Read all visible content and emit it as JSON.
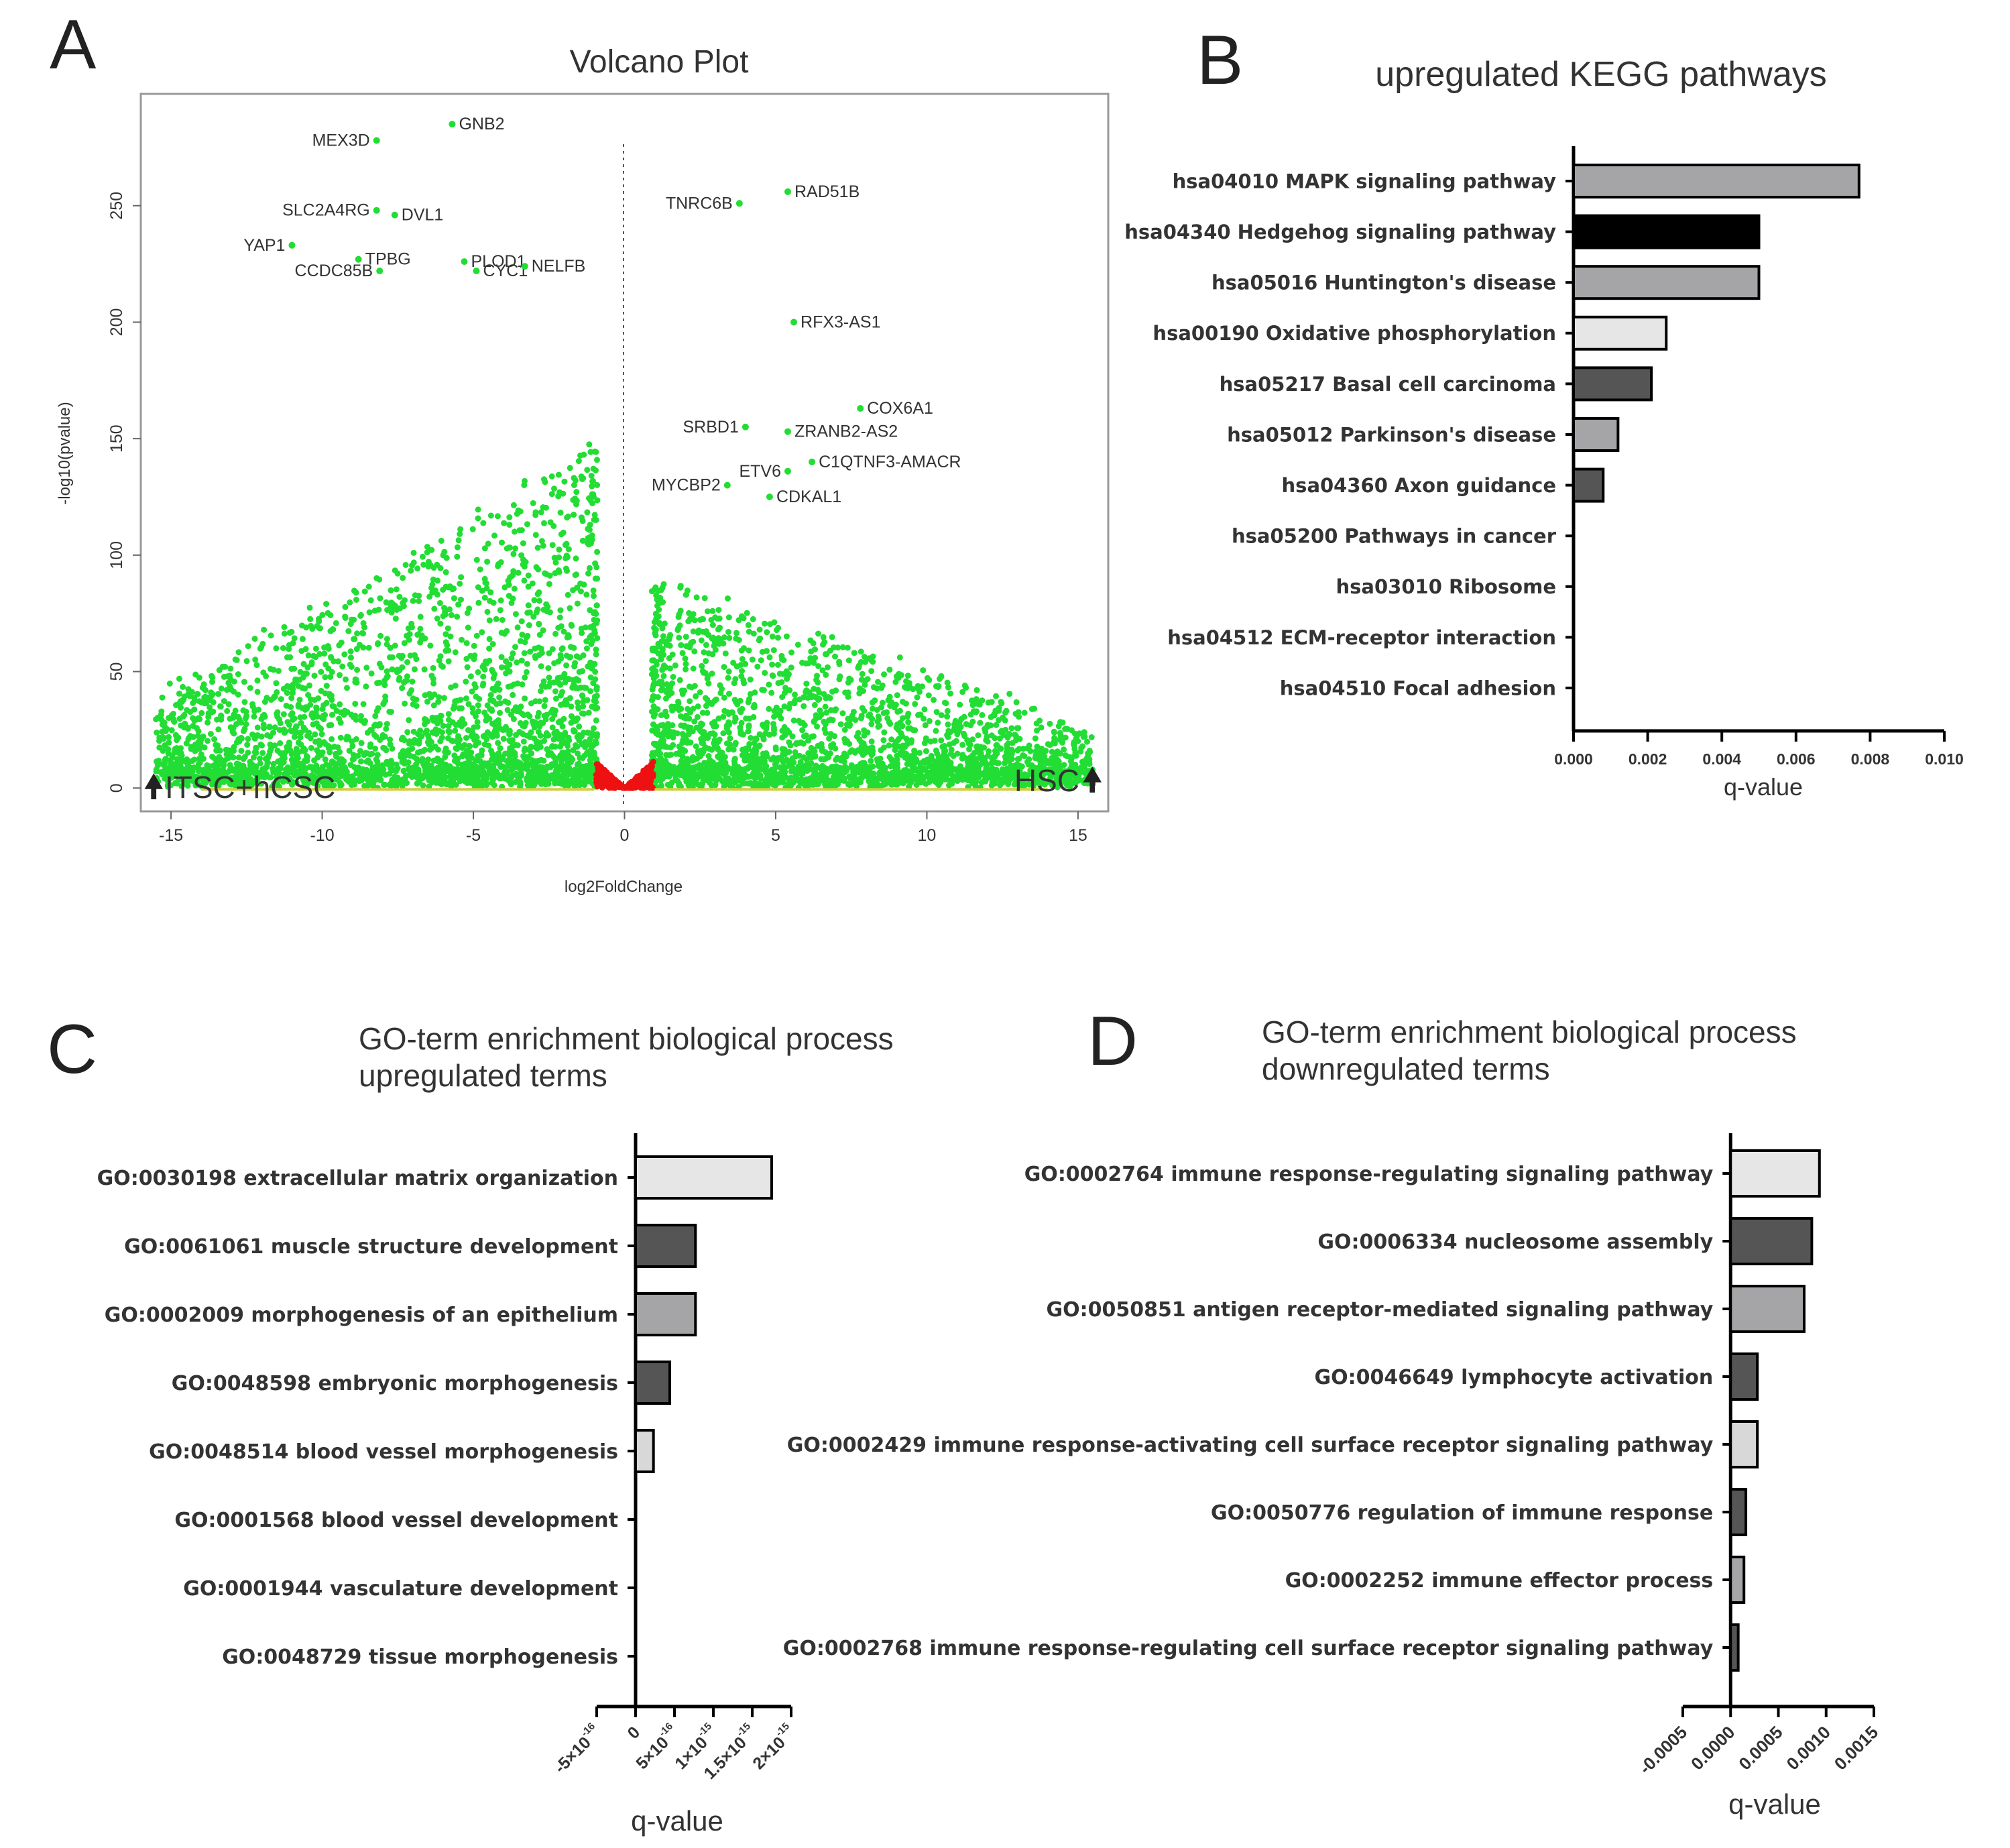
{
  "chart_data": [
    {
      "panel": "A",
      "type": "scatter",
      "title": "Volcano Plot",
      "xlabel": "log2FoldChange",
      "ylabel": "-log10(pvalue)",
      "xlim": [
        -16,
        16
      ],
      "ylim": [
        -10,
        298
      ],
      "xticks": [
        -15,
        -10,
        -5,
        0,
        5,
        10,
        15
      ],
      "yticks": [
        0,
        50,
        100,
        150,
        200,
        250
      ],
      "corner_labels": {
        "left": "ITSC+hCSC",
        "right": "HSC"
      },
      "colors": {
        "significant": "#22dd33",
        "not_significant": "#ee1111",
        "low": "#cfcf40"
      },
      "labeled_genes": [
        {
          "name": "GNB2",
          "x": -5.7,
          "y": 285
        },
        {
          "name": "MEX3D",
          "x": -8.2,
          "y": 278
        },
        {
          "name": "SLC2A4RG",
          "x": -8.2,
          "y": 248
        },
        {
          "name": "DVL1",
          "x": -7.6,
          "y": 246
        },
        {
          "name": "YAP1",
          "x": -11,
          "y": 233
        },
        {
          "name": "TPBG",
          "x": -8.8,
          "y": 227
        },
        {
          "name": "CCDC85B",
          "x": -8.1,
          "y": 222
        },
        {
          "name": "CYC1",
          "x": -4.9,
          "y": 222
        },
        {
          "name": "PLOD1",
          "x": -5.3,
          "y": 226
        },
        {
          "name": "NELFB",
          "x": -3.3,
          "y": 224
        },
        {
          "name": "TNRC6B",
          "x": 3.8,
          "y": 251
        },
        {
          "name": "RAD51B",
          "x": 5.4,
          "y": 256
        },
        {
          "name": "RFX3-AS1",
          "x": 5.6,
          "y": 200
        },
        {
          "name": "COX6A1",
          "x": 7.8,
          "y": 163
        },
        {
          "name": "SRBD1",
          "x": 4.0,
          "y": 155
        },
        {
          "name": "ZRANB2-AS2",
          "x": 5.4,
          "y": 153
        },
        {
          "name": "C1QTNF3-AMACR",
          "x": 6.2,
          "y": 140
        },
        {
          "name": "ETV6",
          "x": 5.4,
          "y": 136
        },
        {
          "name": "MYCBP2",
          "x": 3.4,
          "y": 130
        },
        {
          "name": "CDKAL1",
          "x": 4.8,
          "y": 125
        }
      ]
    },
    {
      "panel": "B",
      "type": "bar",
      "orientation": "horizontal",
      "title": "upregulated KEGG pathways",
      "xlabel": "q-value",
      "xlim": [
        0,
        0.01
      ],
      "xticks": [
        "0.000",
        "0.002",
        "0.004",
        "0.006",
        "0.008",
        "0.010"
      ],
      "categories": [
        "hsa04010 MAPK signaling pathway",
        "hsa04340 Hedgehog signaling pathway",
        "hsa05016 Huntington's disease",
        "hsa00190 Oxidative phosphorylation",
        "hsa05217 Basal cell carcinoma",
        "hsa05012 Parkinson's disease",
        "hsa04360 Axon guidance",
        "hsa05200 Pathways in cancer",
        "hsa03010 Ribosome",
        "hsa04512 ECM-receptor interaction",
        "hsa04510 Focal adhesion"
      ],
      "values": [
        0.0077,
        0.005,
        0.005,
        0.0025,
        0.0021,
        0.0012,
        0.0008,
        0,
        0,
        0,
        0
      ],
      "fills": [
        "#a5a5a8",
        "#000000",
        "#a5a5a8",
        "#e6e6e6",
        "#555555",
        "#a5a5a8",
        "#555555",
        "#ffffff",
        "#ffffff",
        "#ffffff",
        "#ffffff"
      ]
    },
    {
      "panel": "C",
      "type": "bar",
      "orientation": "horizontal",
      "title": [
        "GO-term enrichment biological process",
        "upregulated terms"
      ],
      "xlabel": "q-value",
      "xlim": [
        -5e-16,
        2e-15
      ],
      "xticks": [
        {
          "v": -5e-16,
          "base": "-5×10",
          "exp": "-16"
        },
        {
          "v": 0,
          "base": "0",
          "exp": ""
        },
        {
          "v": 5e-16,
          "base": "5×10",
          "exp": "-16"
        },
        {
          "v": 1e-15,
          "base": "1×10",
          "exp": "-15"
        },
        {
          "v": 1.5e-15,
          "base": "1.5×10",
          "exp": "-15"
        },
        {
          "v": 2e-15,
          "base": "2×10",
          "exp": "-15"
        }
      ],
      "categories": [
        "GO:0030198 extracellular matrix organization",
        "GO:0061061 muscle structure development",
        "GO:0002009 morphogenesis of an epithelium",
        "GO:0048598 embryonic morphogenesis",
        "GO:0048514 blood vessel morphogenesis",
        "GO:0001568 blood vessel development",
        "GO:0001944 vasculature development",
        "GO:0048729 tissue morphogenesis"
      ],
      "values": [
        1.75e-15,
        7.7e-16,
        7.7e-16,
        4.4e-16,
        2.3e-16,
        0,
        0,
        0
      ],
      "fills": [
        "#e6e6e6",
        "#555555",
        "#a5a5a8",
        "#555555",
        "#d8d8d8",
        "#ffffff",
        "#ffffff",
        "#ffffff"
      ]
    },
    {
      "panel": "D",
      "type": "bar",
      "orientation": "horizontal",
      "title": [
        "GO-term enrichment biological process",
        "downregulated terms"
      ],
      "xlabel": "q-value",
      "xlim": [
        -0.0005,
        0.0015
      ],
      "xticks": [
        "-0.0005",
        "0.0000",
        "0.0005",
        "0.0010",
        "0.0015"
      ],
      "categories": [
        "GO:0002764 immune response-regulating signaling pathway",
        "GO:0006334 nucleosome assembly",
        "GO:0050851 antigen receptor-mediated signaling pathway",
        "GO:0046649 lymphocyte activation",
        "GO:0002429 immune response-activating cell surface receptor signaling pathway",
        "GO:0050776 regulation of immune response",
        "GO:0002252 immune effector process",
        "GO:0002768 immune response-regulating cell surface receptor signaling pathway"
      ],
      "values": [
        0.00093,
        0.00085,
        0.00077,
        0.00028,
        0.00028,
        0.00016,
        0.00014,
        8e-05
      ],
      "fills": [
        "#e6e6e6",
        "#555555",
        "#a5a5a8",
        "#555555",
        "#d8d8d8",
        "#555555",
        "#a5a5a8",
        "#555555"
      ]
    }
  ]
}
